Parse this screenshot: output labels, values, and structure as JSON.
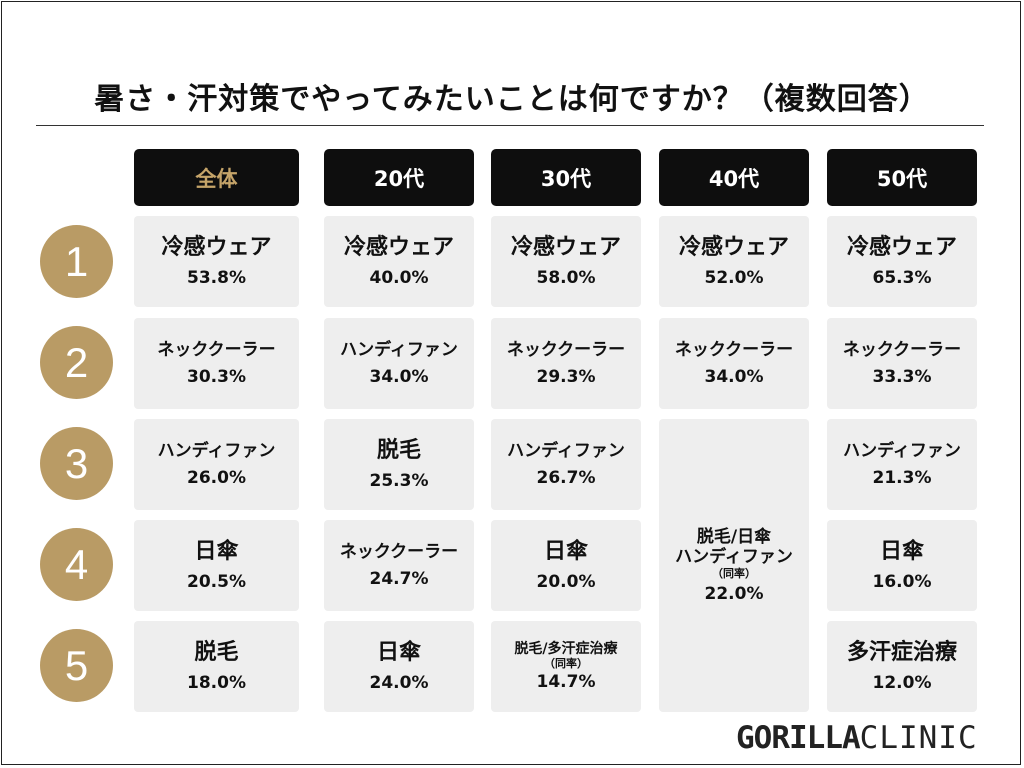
{
  "title": "暑さ・汗対策でやってみたいことは何ですか？（複数回答）",
  "chart_data": {
    "type": "table",
    "title": "暑さ・汗対策でやってみたいことは何ですか？（複数回答）",
    "columns": [
      "全体",
      "20代",
      "30代",
      "40代",
      "50代"
    ],
    "ranks": [
      "1",
      "2",
      "3",
      "4",
      "5"
    ],
    "cells": [
      [
        {
          "item": "冷感ウェア",
          "value": "53.8%"
        },
        {
          "item": "ネッククーラー",
          "value": "30.3%"
        },
        {
          "item": "ハンディファン",
          "value": "26.0%"
        },
        {
          "item": "日傘",
          "value": "20.5%"
        },
        {
          "item": "脱毛",
          "value": "18.0%"
        }
      ],
      [
        {
          "item": "冷感ウェア",
          "value": "40.0%"
        },
        {
          "item": "ハンディファン",
          "value": "34.0%"
        },
        {
          "item": "脱毛",
          "value": "25.3%"
        },
        {
          "item": "ネッククーラー",
          "value": "24.7%"
        },
        {
          "item": "日傘",
          "value": "24.0%"
        }
      ],
      [
        {
          "item": "冷感ウェア",
          "value": "58.0%"
        },
        {
          "item": "ネッククーラー",
          "value": "29.3%"
        },
        {
          "item": "ハンディファン",
          "value": "26.7%"
        },
        {
          "item": "日傘",
          "value": "20.0%"
        },
        {
          "item": "脱毛/多汗症治療",
          "note": "（同率）",
          "value": "14.7%"
        }
      ],
      [
        {
          "item": "冷感ウェア",
          "value": "52.0%"
        },
        {
          "item": "ネッククーラー",
          "value": "34.0%"
        },
        {
          "item": "脱毛/日傘",
          "item2": "ハンディファン",
          "note": "（同率）",
          "value": "22.0%"
        }
      ],
      [
        {
          "item": "冷感ウェア",
          "value": "65.3%"
        },
        {
          "item": "ネッククーラー",
          "value": "33.3%"
        },
        {
          "item": "ハンディファン",
          "value": "21.3%"
        },
        {
          "item": "日傘",
          "value": "16.0%"
        },
        {
          "item": "多汗症治療",
          "value": "12.0%"
        }
      ]
    ]
  },
  "logo": {
    "strong": "GORILLA",
    "light": "CLINIC"
  },
  "colors": {
    "gold": "#b99b65",
    "header": "#0e0e0e",
    "cell": "#eeeeee",
    "overall_header_text": "#c5a469"
  }
}
